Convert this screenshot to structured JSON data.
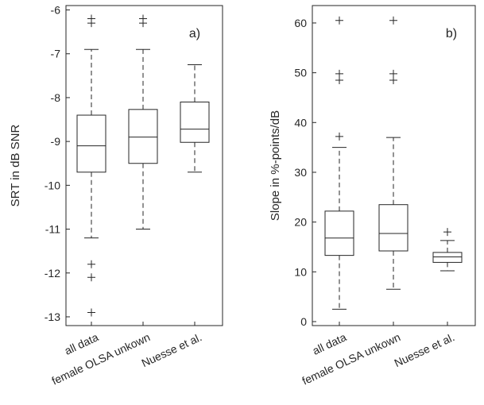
{
  "chart_data": [
    {
      "type": "box",
      "panel_label": "a)",
      "ylabel": "SRT in dB SNR",
      "xlabel": "",
      "ylim": [
        -13.2,
        -5.9
      ],
      "yticks": [
        -13,
        -12,
        -11,
        -10,
        -9,
        -8,
        -7,
        -6
      ],
      "ytick_labels": [
        "-13",
        "-12",
        "-11",
        "-10",
        "-9",
        "-8",
        "-7",
        "-6"
      ],
      "grid": false,
      "categories": [
        "all data",
        "female OLSA unkown",
        "Nuesse et al."
      ],
      "boxes": [
        {
          "category": "all data",
          "whisker_low": -11.2,
          "q1": -9.7,
          "median": -9.1,
          "q3": -8.4,
          "whisker_high": -6.9,
          "outliers": [
            -6.2,
            -6.3,
            -11.8,
            -12.1,
            -12.9
          ]
        },
        {
          "category": "female OLSA unkown",
          "whisker_low": -11.0,
          "q1": -9.5,
          "median": -8.9,
          "q3": -8.27,
          "whisker_high": -6.9,
          "outliers": [
            -6.2,
            -6.3
          ]
        },
        {
          "category": "Nuesse et al.",
          "whisker_low": -9.7,
          "q1": -9.02,
          "median": -8.72,
          "q3": -8.1,
          "whisker_high": -7.25,
          "outliers": []
        }
      ]
    },
    {
      "type": "box",
      "panel_label": "b)",
      "ylabel": "Slope in %-points/dB",
      "xlabel": "",
      "ylim": [
        -0.8,
        63.5
      ],
      "yticks": [
        0,
        10,
        20,
        30,
        40,
        50,
        60
      ],
      "ytick_labels": [
        "0",
        "10",
        "20",
        "30",
        "40",
        "50",
        "60"
      ],
      "grid": false,
      "categories": [
        "all data",
        "female OLSA unkown",
        "Nuesse et al."
      ],
      "boxes": [
        {
          "category": "all data",
          "whisker_low": 2.5,
          "q1": 13.3,
          "median": 16.8,
          "q3": 22.2,
          "whisker_high": 35.0,
          "outliers": [
            37.2,
            48.5,
            49.8,
            60.5
          ]
        },
        {
          "category": "female OLSA unkown",
          "whisker_low": 6.5,
          "q1": 14.2,
          "median": 17.7,
          "q3": 23.5,
          "whisker_high": 37.0,
          "outliers": [
            48.5,
            49.8,
            60.5
          ]
        },
        {
          "category": "Nuesse et al.",
          "whisker_low": 10.2,
          "q1": 11.9,
          "median": 13.0,
          "q3": 13.9,
          "whisker_high": 16.3,
          "outliers": [
            18.0
          ]
        }
      ]
    }
  ]
}
